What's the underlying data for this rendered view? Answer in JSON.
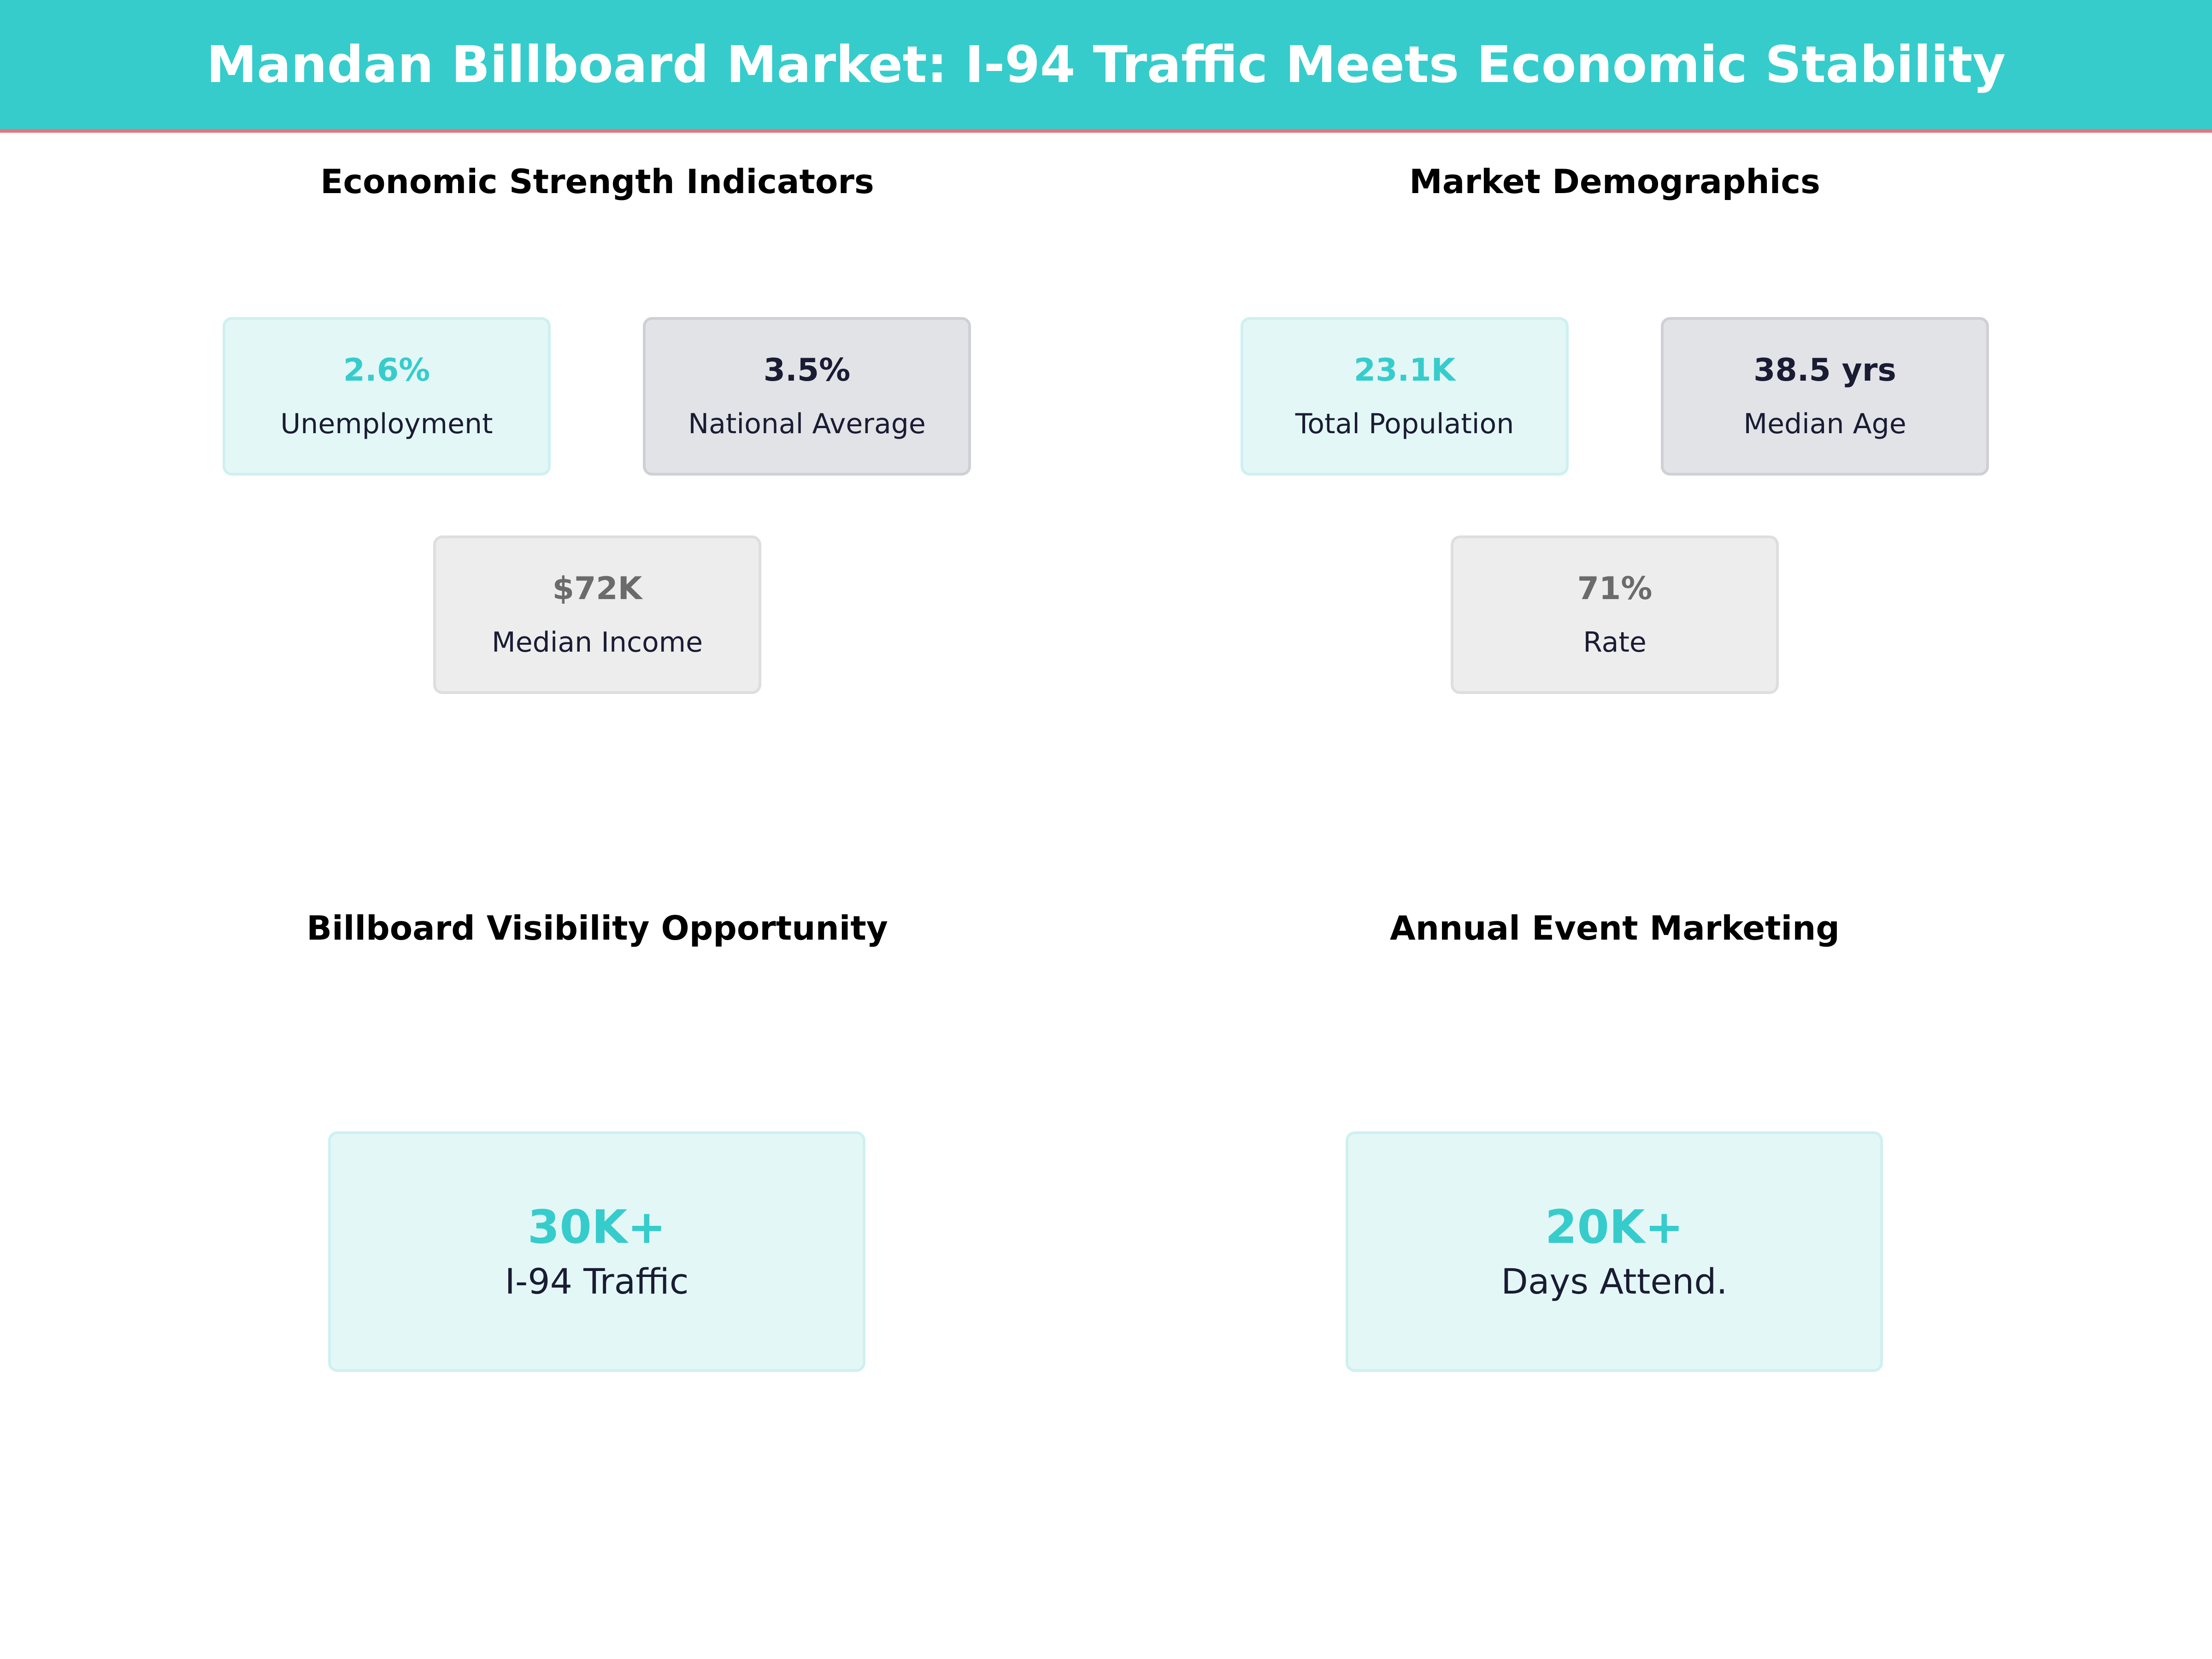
{
  "title": "Mandan Billboard Market: I-94 Traffic Meets Economic Stability",
  "colors": {
    "banner": "#36CCCC",
    "banner_underline": "#E8737F",
    "accent_teal": "#36CCCC",
    "navy_text": "#1A1C33",
    "gray_value": "#6B6B6B",
    "teal_card_bg": "#E4F7F7",
    "slate_card_bg": "#E2E3E7",
    "gray_card_bg": "#EDEDED"
  },
  "economic": {
    "title": "Economic Strength Indicators",
    "cards": [
      {
        "value": "2.6%",
        "label": "Unemployment"
      },
      {
        "value": "3.5%",
        "label": "National Average"
      },
      {
        "value": "$72K",
        "label": "Median Income"
      }
    ]
  },
  "demographics": {
    "title": "Market Demographics",
    "cards": [
      {
        "value": "23.1K",
        "label": "Total Population"
      },
      {
        "value": "38.5 yrs",
        "label": "Median Age"
      },
      {
        "value": "71%",
        "label": "Rate"
      }
    ]
  },
  "visibility": {
    "title": "Billboard Visibility Opportunity",
    "value": "30K+",
    "label": "I-94 Traffic"
  },
  "events": {
    "title": "Annual Event Marketing",
    "value": "20K+",
    "label": "Days Attend."
  }
}
